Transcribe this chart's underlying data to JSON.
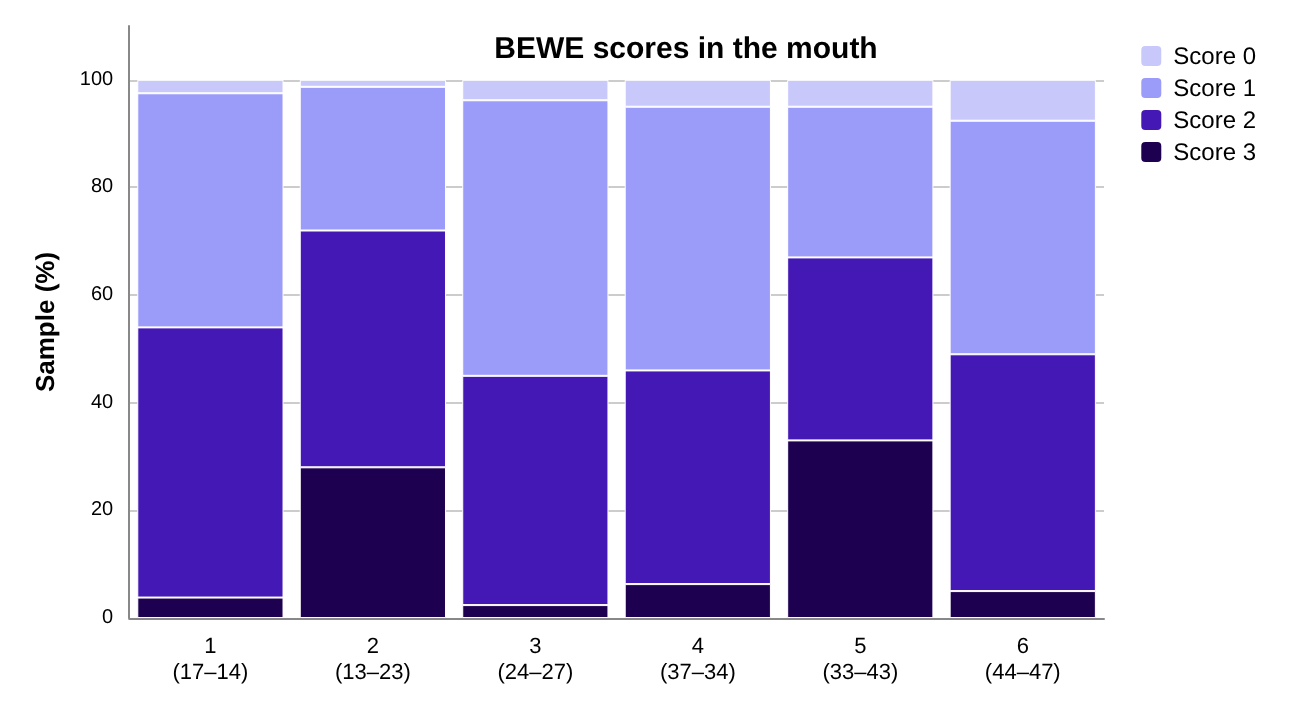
{
  "chart_data": {
    "type": "bar",
    "title": "BEWE scores in the mouth",
    "ylabel": "Sample (%)",
    "categories": [
      "1\n(17–14)",
      "2\n(13–23)",
      "3\n(24–27)",
      "4\n(37–34)",
      "5\n(33–43)",
      "6\n(44–47)"
    ],
    "stacked": true,
    "series": [
      {
        "name": "Score 3",
        "color": "#1e0050",
        "values": [
          3.8,
          28,
          2.4,
          6.3,
          33,
          5
        ]
      },
      {
        "name": "Score 2",
        "color": "#4418b5",
        "values": [
          50.2,
          44,
          42.6,
          39.7,
          34,
          44
        ]
      },
      {
        "name": "Score 1",
        "color": "#9b9bfa",
        "values": [
          43.5,
          26.7,
          51.2,
          49,
          28,
          43.4
        ]
      },
      {
        "name": "Score 0",
        "color": "#c8c8fa",
        "values": [
          2.5,
          1.3,
          3.8,
          5,
          5,
          7.6
        ]
      }
    ],
    "ylim": [
      0,
      110
    ],
    "yticks": [
      0,
      20,
      40,
      60,
      80,
      100
    ],
    "grid": "y",
    "legend": "top right"
  }
}
